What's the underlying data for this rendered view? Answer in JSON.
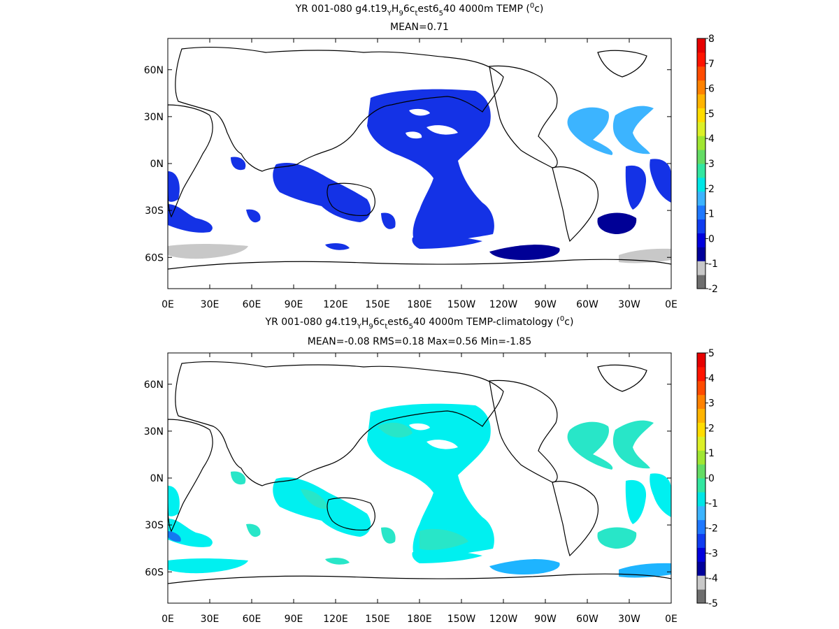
{
  "panels": [
    {
      "title_prefix": "YR 001-080 g4.t19",
      "title_sub1": "Y",
      "title_mid1": "H",
      "title_sub2": "9",
      "title_mid2": "6c",
      "title_sub3": "t",
      "title_mid3": "est6",
      "title_sub4": "5",
      "title_suffix": "40 4000m TEMP (",
      "title_sup": "0",
      "title_unit": "c)",
      "stats": "MEAN=0.71",
      "colorbar_labels": [
        "8",
        "7",
        "6",
        "5",
        "4",
        "3",
        "2",
        "1",
        "0",
        "-1",
        "-2"
      ]
    },
    {
      "title_prefix": "YR 001-080 g4.t19",
      "title_sub1": "Y",
      "title_mid1": "H",
      "title_sub2": "9",
      "title_mid2": "6c",
      "title_sub3": "t",
      "title_mid3": "est6",
      "title_sub4": "5",
      "title_suffix": "40 4000m TEMP-climatology (",
      "title_sup": "0",
      "title_unit": "c)",
      "stats": "MEAN=-0.08   RMS=0.18   Max=0.56   Min=-1.85",
      "colorbar_labels": [
        "5",
        "4",
        "3",
        "2",
        "1",
        "0",
        "-1",
        "-2",
        "-3",
        "-4",
        "-5"
      ]
    }
  ],
  "x_ticks": [
    "0E",
    "30E",
    "60E",
    "90E",
    "120E",
    "150E",
    "180E",
    "150W",
    "120W",
    "90W",
    "60W",
    "30W",
    "0E"
  ],
  "y_ticks": [
    "60N",
    "30N",
    "0N",
    "30S",
    "60S"
  ],
  "colors": {
    "colorbar": [
      "#6e6e6e",
      "#c8c8c8",
      "#00009a",
      "#0000dc",
      "#0f3cf0",
      "#1e78ff",
      "#3cb4ff",
      "#00e6e6",
      "#32e6a0",
      "#64dc64",
      "#a0e632",
      "#dcf028",
      "#ffdc00",
      "#ffb400",
      "#ff8200",
      "#ff4b00",
      "#ff1400",
      "#e60000"
    ],
    "panel1_deep": "#1432e6",
    "panel1_mid": "#1e78ff",
    "panel1_light": "#3cb4ff",
    "panel1_dark": "#000096",
    "panel1_gray": "#c8c8c8",
    "panel2_cyan": "#00f0f0",
    "panel2_aqua": "#28e6c8",
    "panel2_blue": "#1eb4ff",
    "panel2_deep": "#1478f0"
  }
}
